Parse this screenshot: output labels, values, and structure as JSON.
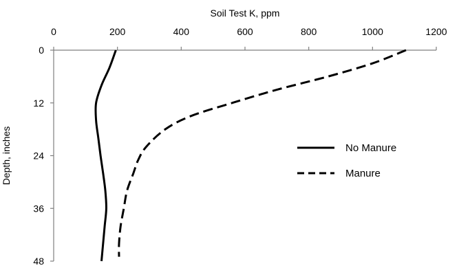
{
  "chart_data": {
    "type": "line",
    "xlabel": "Soil Test K, ppm",
    "ylabel": "Depth, inches",
    "xlim": [
      0,
      1200
    ],
    "ylim": [
      0,
      48
    ],
    "x_axis_position": "top",
    "y_axis_inverted": true,
    "x_ticks": [
      0,
      200,
      400,
      600,
      800,
      1000,
      1200
    ],
    "y_ticks": [
      0,
      12,
      24,
      36,
      48
    ],
    "grid": false,
    "legend_position": "right-center",
    "series": [
      {
        "name": "No Manure",
        "line_style": "solid",
        "color": "#000000",
        "points": [
          {
            "x": 195,
            "y": 0
          },
          {
            "x": 175,
            "y": 4
          },
          {
            "x": 150,
            "y": 8
          },
          {
            "x": 133,
            "y": 12
          },
          {
            "x": 133,
            "y": 16
          },
          {
            "x": 140,
            "y": 20
          },
          {
            "x": 147,
            "y": 24
          },
          {
            "x": 155,
            "y": 28
          },
          {
            "x": 162,
            "y": 32
          },
          {
            "x": 165,
            "y": 36
          },
          {
            "x": 160,
            "y": 40
          },
          {
            "x": 155,
            "y": 44
          },
          {
            "x": 150,
            "y": 48
          }
        ]
      },
      {
        "name": "Manure",
        "line_style": "dashed",
        "color": "#000000",
        "points": [
          {
            "x": 1105,
            "y": 0
          },
          {
            "x": 1000,
            "y": 3
          },
          {
            "x": 860,
            "y": 6
          },
          {
            "x": 700,
            "y": 9
          },
          {
            "x": 560,
            "y": 12
          },
          {
            "x": 430,
            "y": 15
          },
          {
            "x": 350,
            "y": 18
          },
          {
            "x": 290,
            "y": 22
          },
          {
            "x": 265,
            "y": 25
          },
          {
            "x": 250,
            "y": 28
          },
          {
            "x": 230,
            "y": 32
          },
          {
            "x": 220,
            "y": 36
          },
          {
            "x": 210,
            "y": 40
          },
          {
            "x": 205,
            "y": 44
          },
          {
            "x": 205,
            "y": 47
          }
        ]
      }
    ]
  }
}
